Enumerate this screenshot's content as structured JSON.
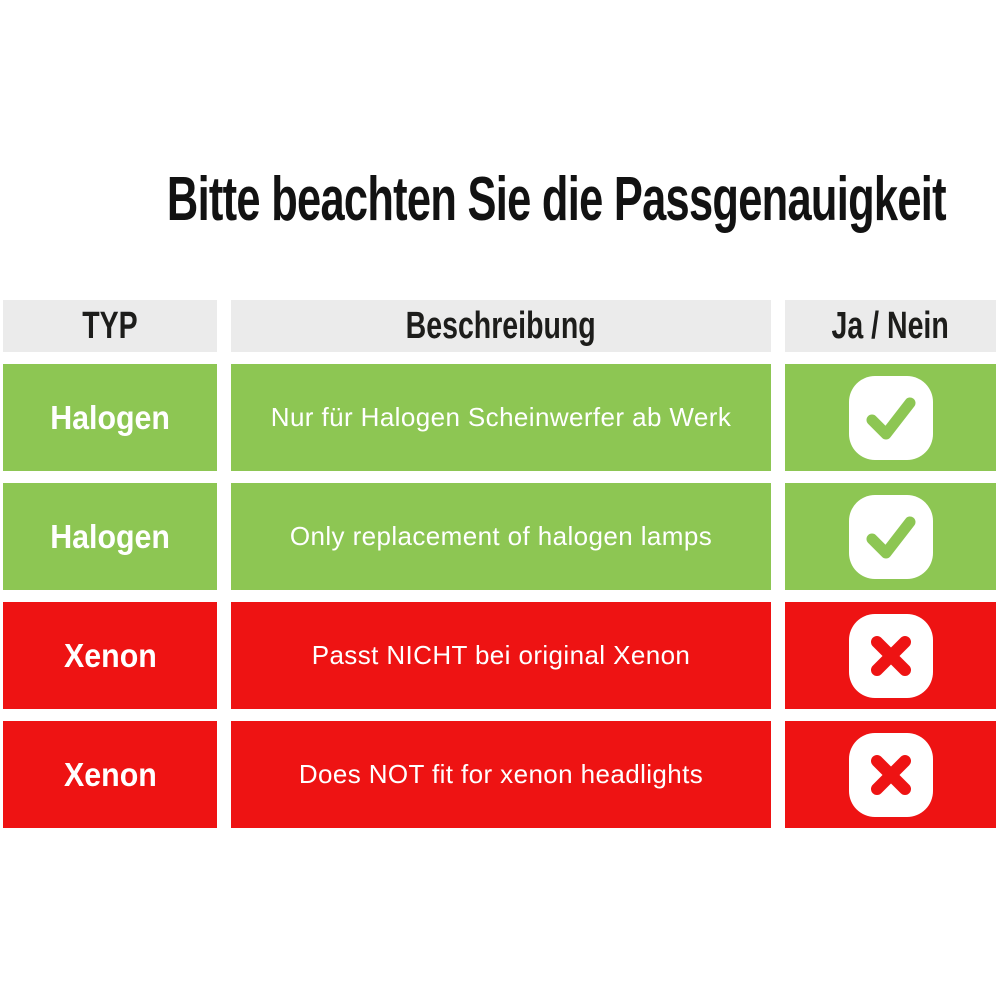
{
  "title": "Bitte beachten Sie die Passgenauigkeit",
  "table": {
    "headers": [
      {
        "label": "TYP"
      },
      {
        "label": "Beschreibung"
      },
      {
        "label": "Ja / Nein"
      }
    ],
    "rows": [
      {
        "type": "Halogen",
        "description": "Nur für Halogen Scheinwerfer ab Werk",
        "status": "yes"
      },
      {
        "type": "Halogen",
        "description": "Only replacement of halogen lamps",
        "status": "yes"
      },
      {
        "type": "Xenon",
        "description": "Passt NICHT bei original Xenon",
        "status": "no"
      },
      {
        "type": "Xenon",
        "description": "Does NOT fit for xenon headlights",
        "status": "no"
      }
    ],
    "icons": {
      "yes": "check-icon",
      "no": "cross-icon"
    },
    "colors": {
      "green": "#8dc653",
      "red": "#ee1313",
      "header_bg": "#ebebeb",
      "header_text": "#1d1d1b",
      "title_text": "#121212",
      "cell_text": "#ffffff",
      "badge_bg": "#ffffff"
    }
  }
}
